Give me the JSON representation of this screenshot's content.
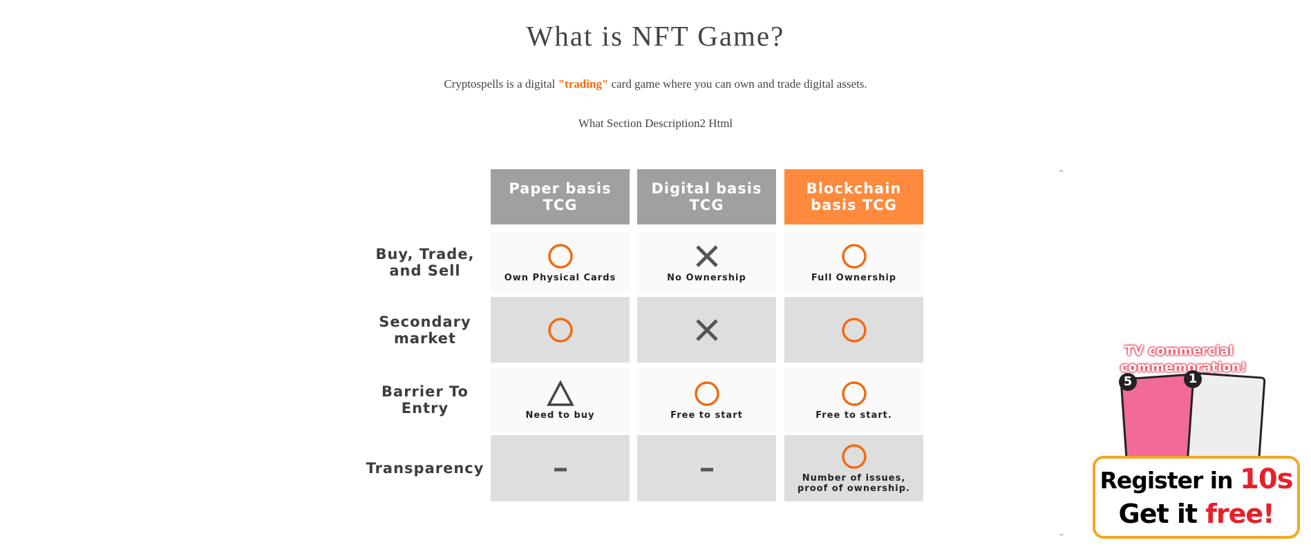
{
  "header": {
    "title": "What is NFT Game?",
    "description": [
      "Cryptospells is a digital ",
      "\"trading\"",
      " card game where you can own and trade digital assets."
    ],
    "description2": "What Section Description2 Html"
  },
  "table": {
    "columns": [
      "Paper basis TCG",
      "Digital basis TCG",
      "Blockchain basis TCG"
    ],
    "rows": [
      {
        "label": "Buy, Trade, and Sell",
        "cells": [
          {
            "icon": "circle",
            "note": "Own Physical Cards"
          },
          {
            "icon": "cross",
            "note": "No Ownership"
          },
          {
            "icon": "circle",
            "note": "Full Ownership"
          }
        ]
      },
      {
        "label": "Secondary market",
        "cells": [
          {
            "icon": "circle"
          },
          {
            "icon": "cross"
          },
          {
            "icon": "circle"
          }
        ]
      },
      {
        "label": "Barrier To Entry",
        "cells": [
          {
            "icon": "triangle",
            "note": "Need to buy"
          },
          {
            "icon": "circle",
            "note": "Free to start"
          },
          {
            "icon": "circle",
            "note": "Free to start."
          }
        ]
      },
      {
        "label": "Transparency",
        "cells": [
          {
            "icon": "dash"
          },
          {
            "icon": "dash"
          },
          {
            "icon": "circle",
            "note": "Number of issues, proof of ownership."
          }
        ]
      }
    ]
  },
  "banner": {
    "headline": "TV commercial commemoration!",
    "cards": [
      "5",
      "1"
    ],
    "line1": [
      "Register in ",
      "10s"
    ],
    "line2": [
      "Get it ",
      "free!"
    ]
  }
}
